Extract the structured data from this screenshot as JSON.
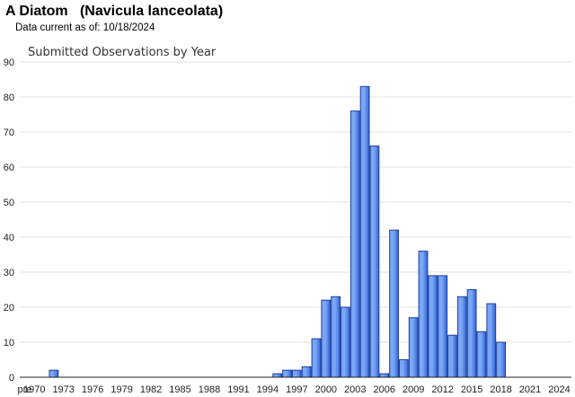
{
  "header": {
    "title": "A Diatom   (Navicula lanceolata)",
    "data_current": "Data current as of: 10/18/2024"
  },
  "colors": {
    "bar_fill_light": "#7aa6f5",
    "bar_fill_dark": "#2f63d8",
    "bar_stroke": "#1f3f99"
  },
  "chart_data": {
    "type": "bar",
    "title": "Submitted Observations by Year",
    "xlabel": "",
    "ylabel": "",
    "ylim": [
      0,
      90
    ],
    "yticks": [
      0,
      10,
      20,
      30,
      40,
      50,
      60,
      70,
      80,
      90
    ],
    "grid": true,
    "legend": "none",
    "xtick_labels": [
      "pre",
      "1970",
      "1973",
      "1976",
      "1979",
      "1982",
      "1985",
      "1988",
      "1991",
      "1994",
      "1997",
      "2000",
      "2003",
      "2006",
      "2009",
      "2012",
      "2015",
      "2018",
      "2021",
      "2024"
    ],
    "categories": [
      "pre",
      "1970",
      "1971",
      "1972",
      "1973",
      "1974",
      "1975",
      "1976",
      "1977",
      "1978",
      "1979",
      "1980",
      "1981",
      "1982",
      "1983",
      "1984",
      "1985",
      "1986",
      "1987",
      "1988",
      "1989",
      "1990",
      "1991",
      "1992",
      "1993",
      "1994",
      "1995",
      "1996",
      "1997",
      "1998",
      "1999",
      "2000",
      "2001",
      "2002",
      "2003",
      "2004",
      "2005",
      "2006",
      "2007",
      "2008",
      "2009",
      "2010",
      "2011",
      "2012",
      "2013",
      "2014",
      "2015",
      "2016",
      "2017",
      "2018",
      "2019",
      "2020",
      "2021",
      "2022",
      "2023",
      "2024"
    ],
    "values": [
      0,
      0,
      0,
      2,
      0,
      0,
      0,
      0,
      0,
      0,
      0,
      0,
      0,
      0,
      0,
      0,
      0,
      0,
      0,
      0,
      0,
      0,
      0,
      0,
      0,
      0,
      1,
      2,
      2,
      3,
      11,
      22,
      23,
      20,
      76,
      83,
      66,
      1,
      42,
      5,
      17,
      36,
      29,
      29,
      12,
      23,
      25,
      13,
      21,
      10,
      0,
      0,
      0,
      0,
      0,
      0
    ]
  }
}
